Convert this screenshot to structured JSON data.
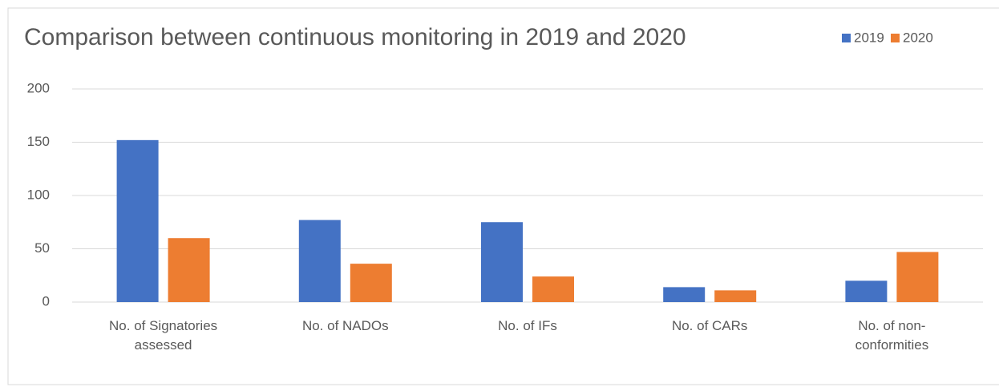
{
  "chart_data": {
    "type": "bar",
    "title": "Comparison between continuous monitoring in 2019 and 2020",
    "categories": [
      "No. of Signatories assessed",
      "No. of NADOs",
      "No. of IFs",
      "No. of CARs",
      "No. of non-conformities"
    ],
    "series": [
      {
        "name": "2019",
        "color": "#4472c4",
        "values": [
          152,
          77,
          75,
          14,
          20
        ]
      },
      {
        "name": "2020",
        "color": "#ed7d31",
        "values": [
          60,
          36,
          24,
          11,
          47
        ]
      }
    ],
    "ylim": [
      0,
      200
    ],
    "yticks": [
      0,
      50,
      100,
      150,
      200
    ],
    "grid": true,
    "legend": "top-right"
  }
}
